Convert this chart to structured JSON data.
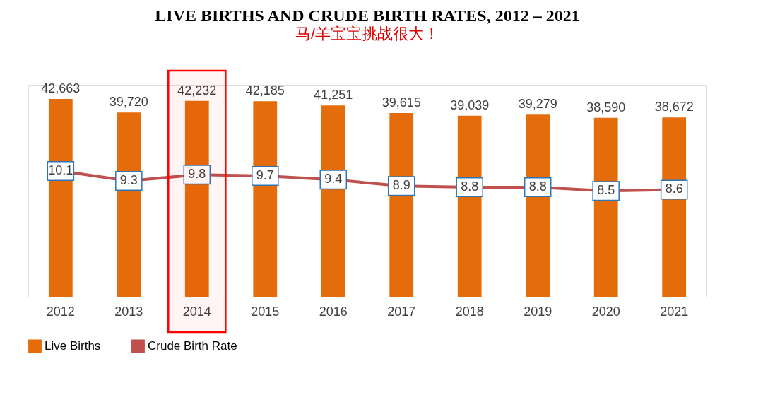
{
  "chart_data": {
    "type": "bar",
    "title": "LIVE BIRTHS AND CRUDE BIRTH RATES, 2012 – 2021",
    "subtitle": "马/羊宝宝挑战很大！",
    "categories": [
      "2012",
      "2013",
      "2014",
      "2015",
      "2016",
      "2017",
      "2018",
      "2019",
      "2020",
      "2021"
    ],
    "series": [
      {
        "name": "Live Births",
        "color": "#e46c0a",
        "values": [
          42663,
          39720,
          42232,
          42185,
          41251,
          39615,
          39039,
          39279,
          38590,
          38672
        ],
        "value_labels": [
          "42,663",
          "39,720",
          "42,232",
          "42,185",
          "41,251",
          "39,615",
          "39,039",
          "39,279",
          "38,590",
          "38,672"
        ]
      },
      {
        "name": "Crude Birth Rate",
        "type": "line",
        "axis": "y2",
        "color": "#c0504d",
        "marker": "square",
        "values": [
          10.1,
          9.3,
          9.8,
          9.7,
          9.4,
          8.9,
          8.8,
          8.8,
          8.5,
          8.6
        ]
      }
    ],
    "tick_labels": "x",
    "data_labels": true,
    "legend": "bottom",
    "grid": false,
    "bands": [
      {
        "axis": "x",
        "from": "2014",
        "to": "2014",
        "color": "#ff0000"
      }
    ]
  }
}
